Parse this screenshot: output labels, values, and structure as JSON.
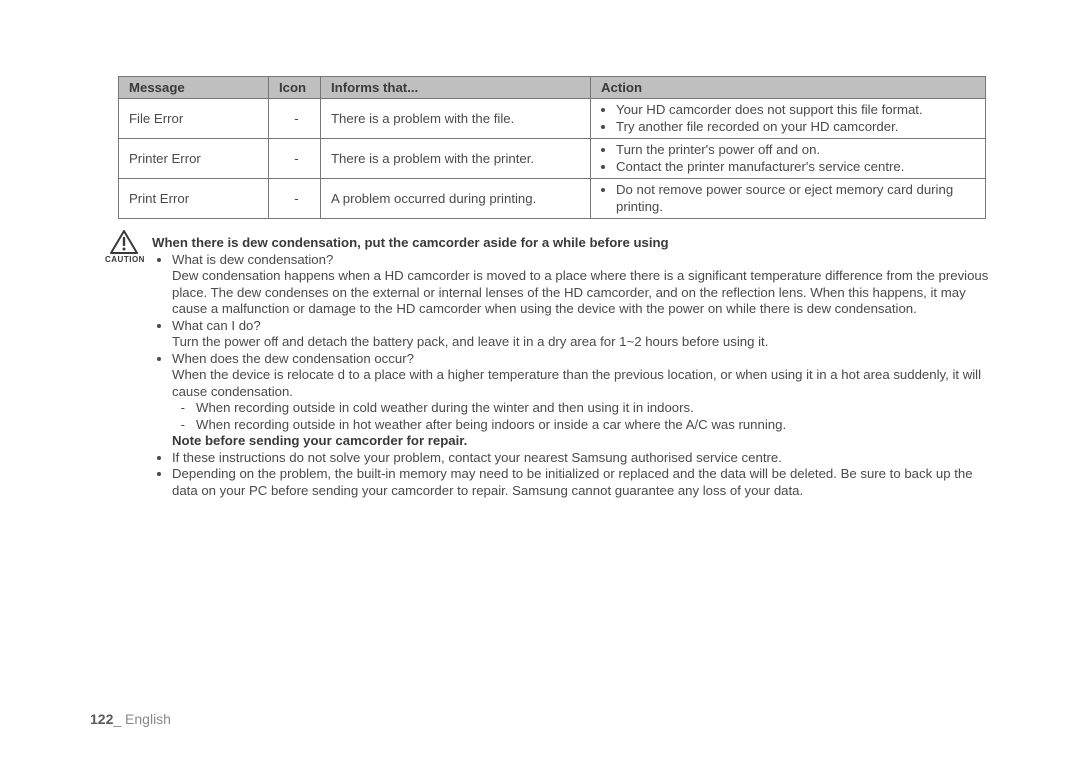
{
  "table": {
    "headers": [
      "Message",
      "Icon",
      "Informs that...",
      "Action"
    ],
    "rows": [
      {
        "message": "File Error",
        "icon": "-",
        "informs": "There is a problem with the file.",
        "actions": [
          "Your HD camcorder does not support this file format.",
          "Try another file recorded on your HD camcorder."
        ]
      },
      {
        "message": "Printer Error",
        "icon": "-",
        "informs": "There is a problem with the printer.",
        "actions": [
          "Turn the printer's power off and on.",
          "Contact the printer manufacturer's service centre."
        ]
      },
      {
        "message": "Print Error",
        "icon": "-",
        "informs": "A problem occurred during printing.",
        "actions": [
          "Do not remove power source or eject memory card during printing."
        ]
      }
    ]
  },
  "caution": {
    "label": "CAUTION",
    "heading": "When there is dew condensation, put the camcorder aside for a while before using",
    "items": [
      {
        "q": "What is dew condensation?",
        "body": "Dew condensation happens when a HD camcorder is moved to a place where there is a significant temperature difference from the previous place. The dew condenses on the external or internal lenses of the HD camcorder, and on the reflection lens. When this happens, it may cause a malfunction or damage to the HD camcorder when using the device with the power on while there is dew condensation."
      },
      {
        "q": "What can I do?",
        "body": "Turn the power off and detach the battery pack, and leave it in a dry area for 1~2 hours before using it."
      },
      {
        "q": "When does the dew condensation occur?",
        "body": "When the device is relocate d to a place with a higher temperature than the previous location, or when using it in a hot area suddenly, it will cause condensation.",
        "subs": [
          "When recording outside in cold weather during the winter and then using it in indoors.",
          "When recording outside in hot weather after being indoors or inside a car where the A/C was running."
        ]
      }
    ],
    "note_heading": "Note before sending your camcorder for repair.",
    "notes": [
      "If these instructions do not solve your problem, contact your nearest Samsung authorised service centre.",
      "Depending on the problem, the built-in memory may need to be initialized or replaced and the data will be deleted. Be sure to back up the data on your PC before sending your camcorder to repair. Samsung cannot guarantee any loss of your data."
    ]
  },
  "footer": {
    "pagenum": "122",
    "sep": "_ ",
    "lang": "English"
  }
}
